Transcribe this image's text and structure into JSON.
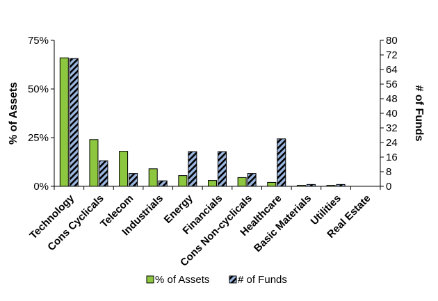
{
  "chart_data": {
    "type": "bar",
    "categories": [
      "Technology",
      "Cons Cyclicals",
      "Telecom",
      "Industrials",
      "Energy",
      "Financials",
      "Cons Non-cyclicals",
      "Healthcare",
      "Basic Materials",
      "Utilities",
      "Real Estate"
    ],
    "series": [
      {
        "name": "% of Assets",
        "axis": "left",
        "color": "#8dc63f",
        "values": [
          66,
          24,
          18,
          9,
          5.5,
          3,
          4.5,
          2,
          0.5,
          0.5,
          0
        ]
      },
      {
        "name": "# of Funds",
        "axis": "right",
        "color": "#9bb7e0",
        "pattern": "diagonal stripes",
        "values": [
          70,
          14,
          7,
          3,
          19,
          19,
          7,
          26,
          1,
          1,
          0
        ]
      }
    ],
    "ylabel": "% of Assets",
    "ylabel_right": "# of Funds",
    "ylim": [
      0,
      75
    ],
    "ylim_right": [
      0,
      80
    ],
    "yticks": [
      "0%",
      "25%",
      "50%",
      "75%"
    ],
    "yticks_right": [
      "0",
      "8",
      "16",
      "24",
      "32",
      "40",
      "48",
      "56",
      "64",
      "72",
      "80"
    ],
    "legend_position": "bottom",
    "grid": false
  }
}
